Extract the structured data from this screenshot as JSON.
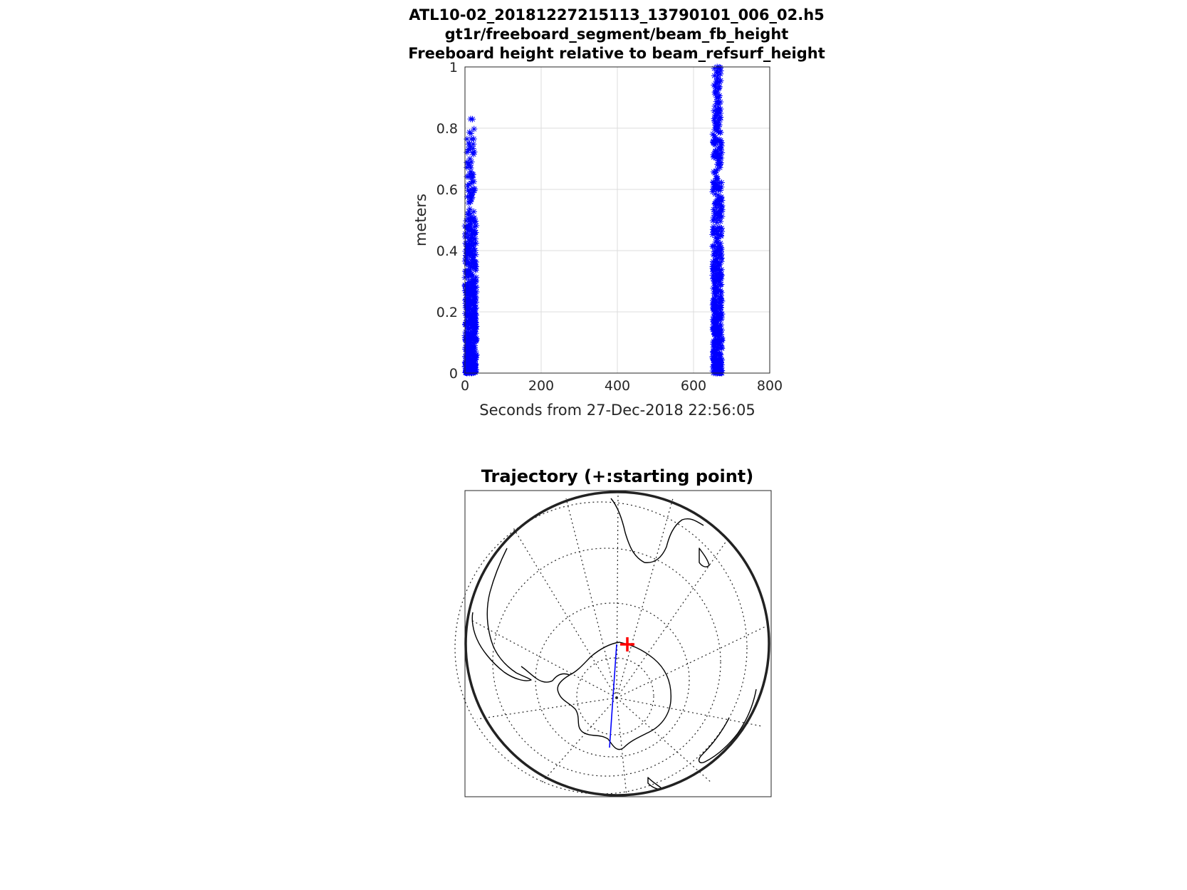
{
  "chart_data": [
    {
      "type": "scatter",
      "title": [
        "ATL10-02_20181227215113_13790101_006_02.h5",
        "gt1r/freeboard_segment/beam_fb_height",
        "Freeboard height relative to beam_refsurf_height"
      ],
      "xlabel": "Seconds from 27-Dec-2018 22:56:05",
      "ylabel": "meters",
      "xlim": [
        0,
        800
      ],
      "ylim": [
        0,
        1
      ],
      "xticks": [
        "0",
        "200",
        "400",
        "600",
        "800"
      ],
      "yticks": [
        "0",
        "0.2",
        "0.4",
        "0.6",
        "0.8",
        "1"
      ],
      "grid": true,
      "marker": "*",
      "color": "#0000ff",
      "clusters": [
        {
          "x_range": [
            0,
            30
          ],
          "dense_y_range": [
            0,
            0.5
          ],
          "sparse_y_range": [
            0.5,
            0.83
          ]
        },
        {
          "x_range": [
            650,
            675
          ],
          "dense_y_range": [
            0,
            0.8
          ],
          "sparse_y_range": [
            0.8,
            1.0
          ]
        }
      ],
      "outliers": [
        {
          "x": 15,
          "y": 0.83
        },
        {
          "x": 15,
          "y": 0.74
        },
        {
          "x": 13,
          "y": 0.7
        },
        {
          "x": 17,
          "y": 0.69
        },
        {
          "x": 15,
          "y": 0.67
        },
        {
          "x": 12,
          "y": 0.65
        },
        {
          "x": 18,
          "y": 0.64
        },
        {
          "x": 16,
          "y": 0.6
        },
        {
          "x": 14,
          "y": 0.58
        },
        {
          "x": 17,
          "y": 0.57
        },
        {
          "x": 15,
          "y": 0.56
        },
        {
          "x": 662,
          "y": 1.0
        },
        {
          "x": 662,
          "y": 0.98
        },
        {
          "x": 663,
          "y": 0.96
        },
        {
          "x": 661,
          "y": 0.9
        },
        {
          "x": 662,
          "y": 0.88
        },
        {
          "x": 663,
          "y": 0.86
        },
        {
          "x": 661,
          "y": 0.84
        },
        {
          "x": 662,
          "y": 0.82
        }
      ]
    },
    {
      "type": "map",
      "title": "Trajectory (+:starting point)",
      "projection": "south-polar stereographic",
      "coastline_color": "#000000",
      "graticule": "dotted",
      "track_color": "#0000ff",
      "start_marker": {
        "symbol": "+",
        "color": "#ff0000"
      }
    }
  ]
}
